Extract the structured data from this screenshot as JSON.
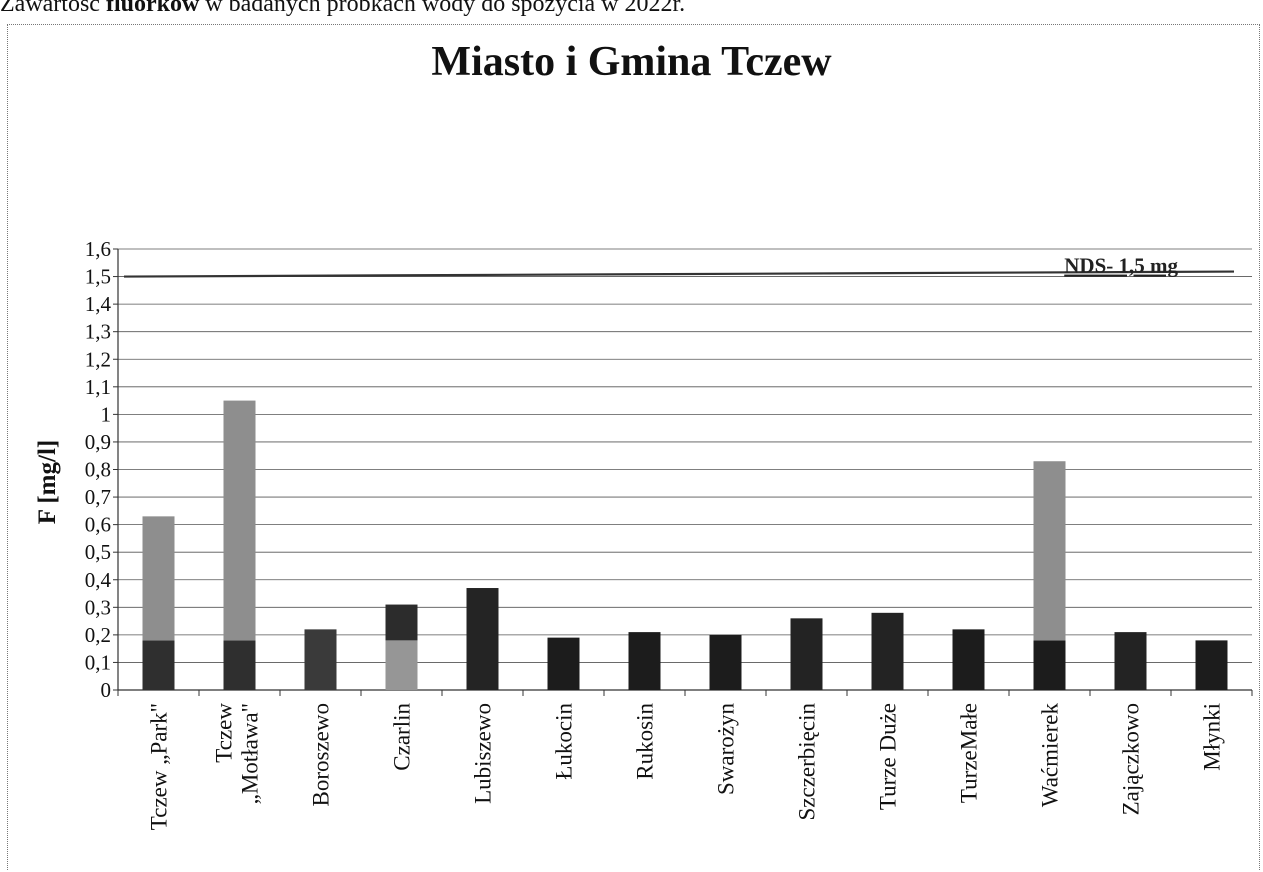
{
  "caption": {
    "prefix": "Zawartość ",
    "bold": "fluorków",
    "suffix": " w badanych próbkach wody do spożycia w 2022r."
  },
  "chart_data": {
    "type": "bar",
    "title": "Miasto i Gmina Tczew",
    "ylabel": "F [mg/l]",
    "xlabel": "",
    "ylim": [
      0,
      1.6
    ],
    "yticks": [
      "0",
      "0,1",
      "0,2",
      "0,3",
      "0,4",
      "0,5",
      "0,6",
      "0,7",
      "0,8",
      "0,9",
      "1",
      "1,1",
      "1,2",
      "1,3",
      "1,4",
      "1,5",
      "1,6"
    ],
    "grid": true,
    "stacked": true,
    "categories": [
      "Tczew „Park\"",
      "Tczew „Motława\"",
      "Boroszewo",
      "Czarlin",
      "Lubiszewo",
      "Łukocin",
      "Rukosin",
      "Swarożyn",
      "Szczerbięcin",
      "Turze Duże",
      "TurzeMałe",
      "Waćmierek",
      "Zajączkowo",
      "Młynki"
    ],
    "series": [
      {
        "values": [
          0.18,
          0.18,
          0.22,
          0.18,
          0.37,
          0.19,
          0.21,
          0.2,
          0.26,
          0.28,
          0.22,
          0.18,
          0.21,
          0.18
        ],
        "colors": [
          "#2f2f2f",
          "#2f2f2f",
          "#3a3a3a",
          "#969696",
          "#242424",
          "#1c1c1c",
          "#1c1c1c",
          "#1c1c1c",
          "#232323",
          "#232323",
          "#1c1c1c",
          "#1c1c1c",
          "#232323",
          "#1c1c1c"
        ]
      },
      {
        "values": [
          0.45,
          0.87,
          0,
          0.13,
          0,
          0,
          0,
          0,
          0,
          0,
          0,
          0.65,
          0,
          0
        ],
        "colors": [
          "#8e8e8e",
          "#8e8e8e",
          "#8e8e8e",
          "#2c2c2c",
          "#8e8e8e",
          "#8e8e8e",
          "#8e8e8e",
          "#8e8e8e",
          "#8e8e8e",
          "#8e8e8e",
          "#8e8e8e",
          "#8e8e8e",
          "#8e8e8e",
          "#8e8e8e"
        ]
      }
    ],
    "threshold": {
      "value": 1.5,
      "label": "NDS- 1,5 mg",
      "color": "#333333"
    }
  }
}
